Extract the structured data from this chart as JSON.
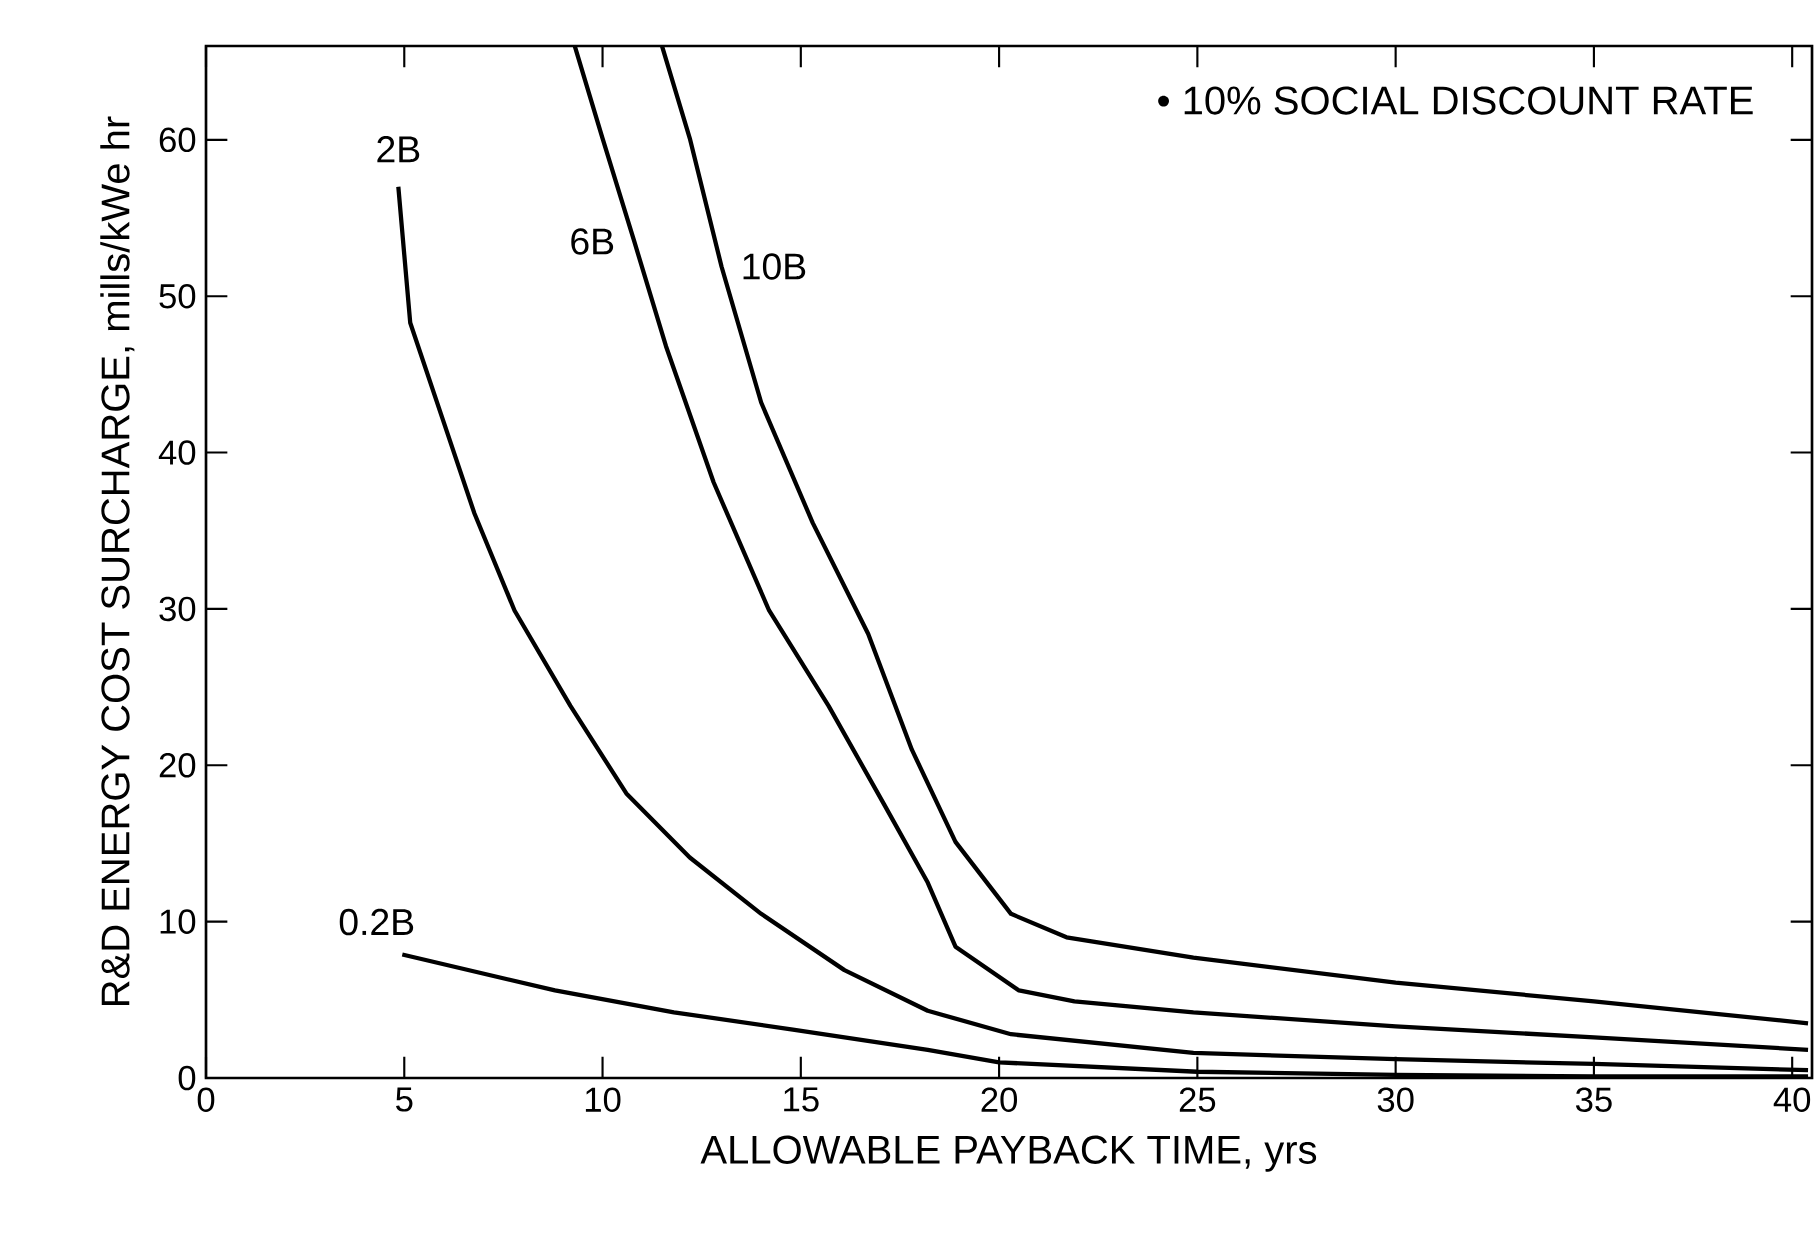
{
  "chart_data": {
    "type": "line",
    "xlabel": "ALLOWABLE PAYBACK TIME, yrs",
    "ylabel": "R&D ENERGY COST SURCHARGE, mills/kWe hr",
    "annotations": [
      "• 10% SOCIAL DISCOUNT RATE"
    ],
    "xlim": [
      0,
      40.5
    ],
    "ylim": [
      0,
      66
    ],
    "xticks": [
      0,
      5,
      10,
      15,
      20,
      25,
      30,
      35,
      40
    ],
    "yticks": [
      0,
      10,
      20,
      30,
      40,
      50,
      60
    ],
    "grid": false,
    "legend": false,
    "marker": "none",
    "line_style": "solid",
    "series": [
      {
        "name": "0.2B",
        "color": "#000000",
        "x": [
          4.95,
          8.8,
          11.8,
          14.8,
          18.2,
          20,
          25,
          30,
          35,
          40.4
        ],
        "values": [
          7.9,
          5.6,
          4.2,
          3.1,
          1.8,
          1.0,
          0.4,
          0.2,
          0.1,
          0.1
        ]
      },
      {
        "name": "2B",
        "color": "#000000",
        "x": [
          4.85,
          5.15,
          5.96,
          6.77,
          7.78,
          9.19,
          10.6,
          12.2,
          14.0,
          16.1,
          18.2,
          20.3,
          24.9,
          30,
          35,
          40.4
        ],
        "values": [
          57.0,
          48.3,
          42.2,
          36.1,
          29.9,
          23.8,
          18.2,
          14.1,
          10.5,
          6.9,
          4.3,
          2.8,
          1.6,
          1.2,
          0.9,
          0.5
        ]
      },
      {
        "name": "6B",
        "color": "#000000",
        "x": [
          9.3,
          10.0,
          10.8,
          11.6,
          12.8,
          14.2,
          15.7,
          17.1,
          18.2,
          18.9,
          20.5,
          21.9,
          24.9,
          30,
          35,
          40.4
        ],
        "values": [
          66,
          60.1,
          53.5,
          46.8,
          38.1,
          29.9,
          23.8,
          17.5,
          12.5,
          8.4,
          5.6,
          4.9,
          4.2,
          3.3,
          2.6,
          1.8
        ]
      },
      {
        "name": "10B",
        "color": "#000000",
        "x": [
          11.5,
          12.2,
          13.0,
          14.0,
          15.3,
          16.7,
          17.8,
          18.9,
          20.3,
          21.7,
          24.9,
          30,
          35,
          40.4
        ],
        "values": [
          66,
          60.1,
          51.9,
          43.2,
          35.5,
          28.4,
          21.0,
          15.1,
          10.5,
          9.0,
          7.7,
          6.1,
          4.9,
          3.5
        ]
      }
    ]
  }
}
